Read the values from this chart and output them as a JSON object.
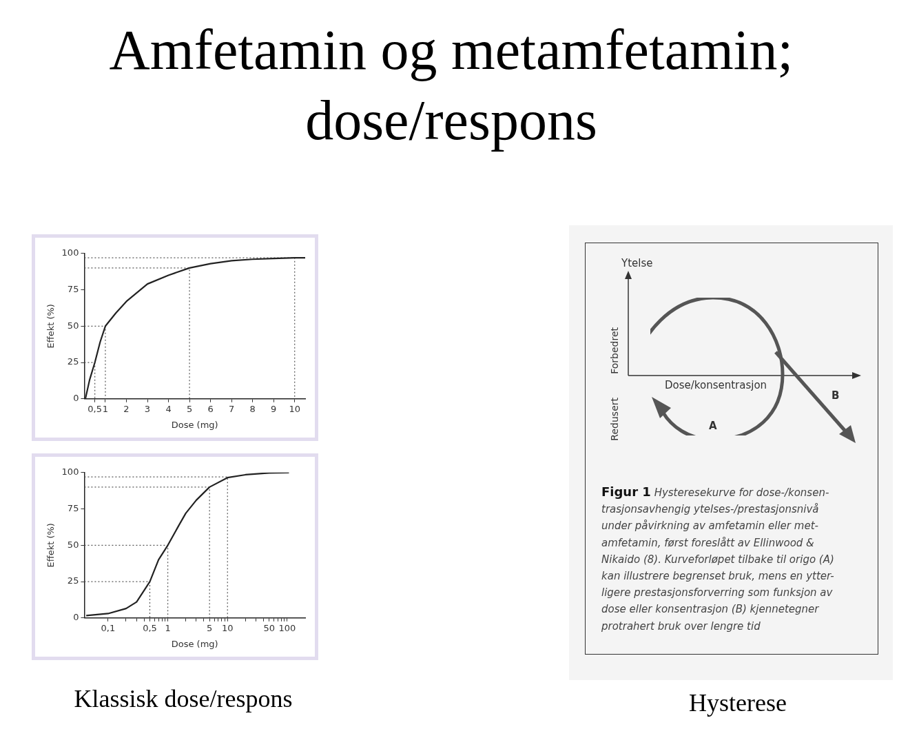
{
  "chart_data": [
    {
      "type": "line",
      "title": "Amfetamin og metamfetamin;\ndose/respons",
      "xlabel": "Dose (mg)",
      "ylabel": "Effekt (%)",
      "xlim": [
        0,
        10.5
      ],
      "ylim": [
        0,
        100
      ],
      "xticks": [
        {
          "value": 0.5,
          "label": "0,5"
        },
        1,
        2,
        3,
        4,
        5,
        6,
        7,
        8,
        9,
        10
      ],
      "yticks": [
        0,
        25,
        50,
        75,
        100
      ],
      "legend": false,
      "series": [
        {
          "color": "#222222",
          "line_style": "solid",
          "x": [
            0.05,
            0.25,
            0.5,
            0.75,
            1,
            1.5,
            2,
            3,
            4,
            5,
            6,
            7,
            8,
            9,
            10,
            10.5
          ],
          "values": [
            0,
            13,
            25,
            39,
            50,
            59,
            67,
            79,
            85,
            90,
            93,
            95,
            96,
            96.5,
            97,
            97
          ]
        },
        {
          "color": "#555555",
          "line_style": "dotted",
          "x": [
            0,
            0.5,
            0.5
          ],
          "values": [
            25,
            25,
            0
          ]
        },
        {
          "color": "#555555",
          "line_style": "dotted",
          "x": [
            0,
            1,
            1
          ],
          "values": [
            50,
            50,
            0
          ]
        },
        {
          "color": "#555555",
          "line_style": "dotted",
          "x": [
            0,
            5,
            5
          ],
          "values": [
            90,
            90,
            0
          ]
        },
        {
          "color": "#555555",
          "line_style": "dotted",
          "x": [
            0,
            10,
            10
          ],
          "values": [
            97,
            97,
            0
          ]
        }
      ]
    },
    {
      "type": "line",
      "xlabel": "Dose (mg)",
      "ylabel": "Effekt (%)",
      "log": "x",
      "xlim": [
        0.04,
        200
      ],
      "ylim": [
        0,
        100
      ],
      "xticks": [
        {
          "value": 0.1,
          "label": "0,1"
        },
        {
          "value": 0.2,
          "label": null
        },
        {
          "value": 0.3,
          "label": null
        },
        {
          "value": 0.4,
          "label": null
        },
        {
          "value": 0.5,
          "label": "0,5"
        },
        {
          "value": 0.6,
          "label": null
        },
        {
          "value": 0.7,
          "label": null
        },
        {
          "value": 0.8,
          "label": null
        },
        {
          "value": 0.9,
          "label": null
        },
        1,
        {
          "value": 2,
          "label": null
        },
        {
          "value": 3,
          "label": null
        },
        {
          "value": 4,
          "label": null
        },
        5,
        {
          "value": 6,
          "label": null
        },
        {
          "value": 7,
          "label": null
        },
        {
          "value": 8,
          "label": null
        },
        {
          "value": 9,
          "label": null
        },
        10,
        {
          "value": 20,
          "label": null
        },
        {
          "value": 30,
          "label": null
        },
        {
          "value": 40,
          "label": null
        },
        50,
        {
          "value": 60,
          "label": null
        },
        {
          "value": 70,
          "label": null
        },
        {
          "value": 80,
          "label": null
        },
        {
          "value": 90,
          "label": null
        },
        100
      ],
      "yticks": [
        0,
        25,
        50,
        75,
        100
      ],
      "legend": false,
      "annotations": [
        "Klassisk dose/respons"
      ],
      "series": [
        {
          "color": "#222222",
          "line_style": "solid",
          "x": [
            0.043,
            0.1,
            0.2,
            0.3,
            0.5,
            0.7,
            1,
            1.5,
            2,
            3,
            5,
            10,
            20,
            50,
            107
          ],
          "values": [
            1.6,
            3,
            6.5,
            11,
            25,
            40,
            50,
            63,
            72,
            81,
            90,
            96.5,
            98.5,
            99.7,
            100
          ]
        },
        {
          "color": "#555555",
          "line_style": "dotted",
          "x": [
            0.04,
            0.5,
            0.5
          ],
          "values": [
            25,
            25,
            0
          ]
        },
        {
          "color": "#555555",
          "line_style": "dotted",
          "x": [
            0.04,
            1,
            1
          ],
          "values": [
            50,
            50,
            0
          ]
        },
        {
          "color": "#555555",
          "line_style": "dotted",
          "x": [
            0.04,
            5,
            5
          ],
          "values": [
            90,
            90,
            0
          ]
        },
        {
          "color": "#555555",
          "line_style": "dotted",
          "x": [
            0.04,
            10,
            10
          ],
          "values": [
            97,
            97,
            0
          ]
        }
      ]
    },
    {
      "type": "other",
      "xlabel": "Dose/konsentrasjon",
      "ylabel": "Ytelse",
      "annotations": [
        "Forbedret",
        "Redusert",
        "A",
        "B",
        "Figur 1",
        "Hysteresekurve for dose-/konsen-\ntrasjonsavhengig ytelses-/prestasjonsnivå\nunder påvirkning av amfetamin eller met-\namfetamin, først foreslått av Ellinwood &\nNikaido (8). Kurveforløpet tilbake til origo (A)\nkan illustrere begrenset bruk, mens en ytter-\nligere prestasjonsforverring som funksjon av\ndose eller konsentrasjon (B) kjennetegner\nprotrahert bruk over lengre tid",
        "Hysterese"
      ]
    }
  ]
}
